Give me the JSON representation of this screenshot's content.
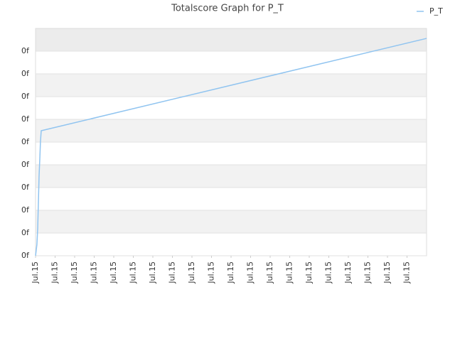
{
  "chart_data": {
    "type": "line",
    "title": "Totalscore Graph for P_T",
    "series": [
      {
        "name": "P_T",
        "color": "#90c4f0",
        "x": [
          0,
          0.07,
          0.11,
          0.15,
          0.18,
          0.22,
          0.25,
          0.29,
          20
        ],
        "values": [
          0,
          0.5,
          1.2,
          2.5,
          3.5,
          4.3,
          5.0,
          5.5,
          9.56
        ]
      }
    ],
    "xlim": [
      0,
      20
    ],
    "ylim": [
      0,
      10
    ],
    "xticks": [
      {
        "value": 0,
        "label": "Jul.15"
      },
      {
        "value": 1,
        "label": "Jul.15"
      },
      {
        "value": 2,
        "label": "Jul.15"
      },
      {
        "value": 3,
        "label": "Jul.15"
      },
      {
        "value": 4,
        "label": "Jul.15"
      },
      {
        "value": 5,
        "label": "Jul.15"
      },
      {
        "value": 6,
        "label": "Jul.15"
      },
      {
        "value": 7,
        "label": "Jul.15"
      },
      {
        "value": 8,
        "label": "Jul.15"
      },
      {
        "value": 9,
        "label": "Jul.15"
      },
      {
        "value": 10,
        "label": "Jul.15"
      },
      {
        "value": 11,
        "label": "Jul.15"
      },
      {
        "value": 12,
        "label": "Jul.15"
      },
      {
        "value": 13,
        "label": "Jul.15"
      },
      {
        "value": 14,
        "label": "Jul.15"
      },
      {
        "value": 15,
        "label": "Jul.15"
      },
      {
        "value": 16,
        "label": "Jul.15"
      },
      {
        "value": 17,
        "label": "Jul.15"
      },
      {
        "value": 18,
        "label": "Jul.15"
      },
      {
        "value": 19,
        "label": "Jul.15"
      }
    ],
    "yticks": [
      {
        "value": 0,
        "label": "0f"
      },
      {
        "value": 1,
        "label": "0f"
      },
      {
        "value": 2,
        "label": "0f"
      },
      {
        "value": 3,
        "label": "0f"
      },
      {
        "value": 4,
        "label": "0f"
      },
      {
        "value": 5,
        "label": "0f"
      },
      {
        "value": 6,
        "label": "0f"
      },
      {
        "value": 7,
        "label": "0f"
      },
      {
        "value": 8,
        "label": "0f"
      },
      {
        "value": 9,
        "label": "0f"
      }
    ],
    "grid": true,
    "legend": "top-right"
  }
}
